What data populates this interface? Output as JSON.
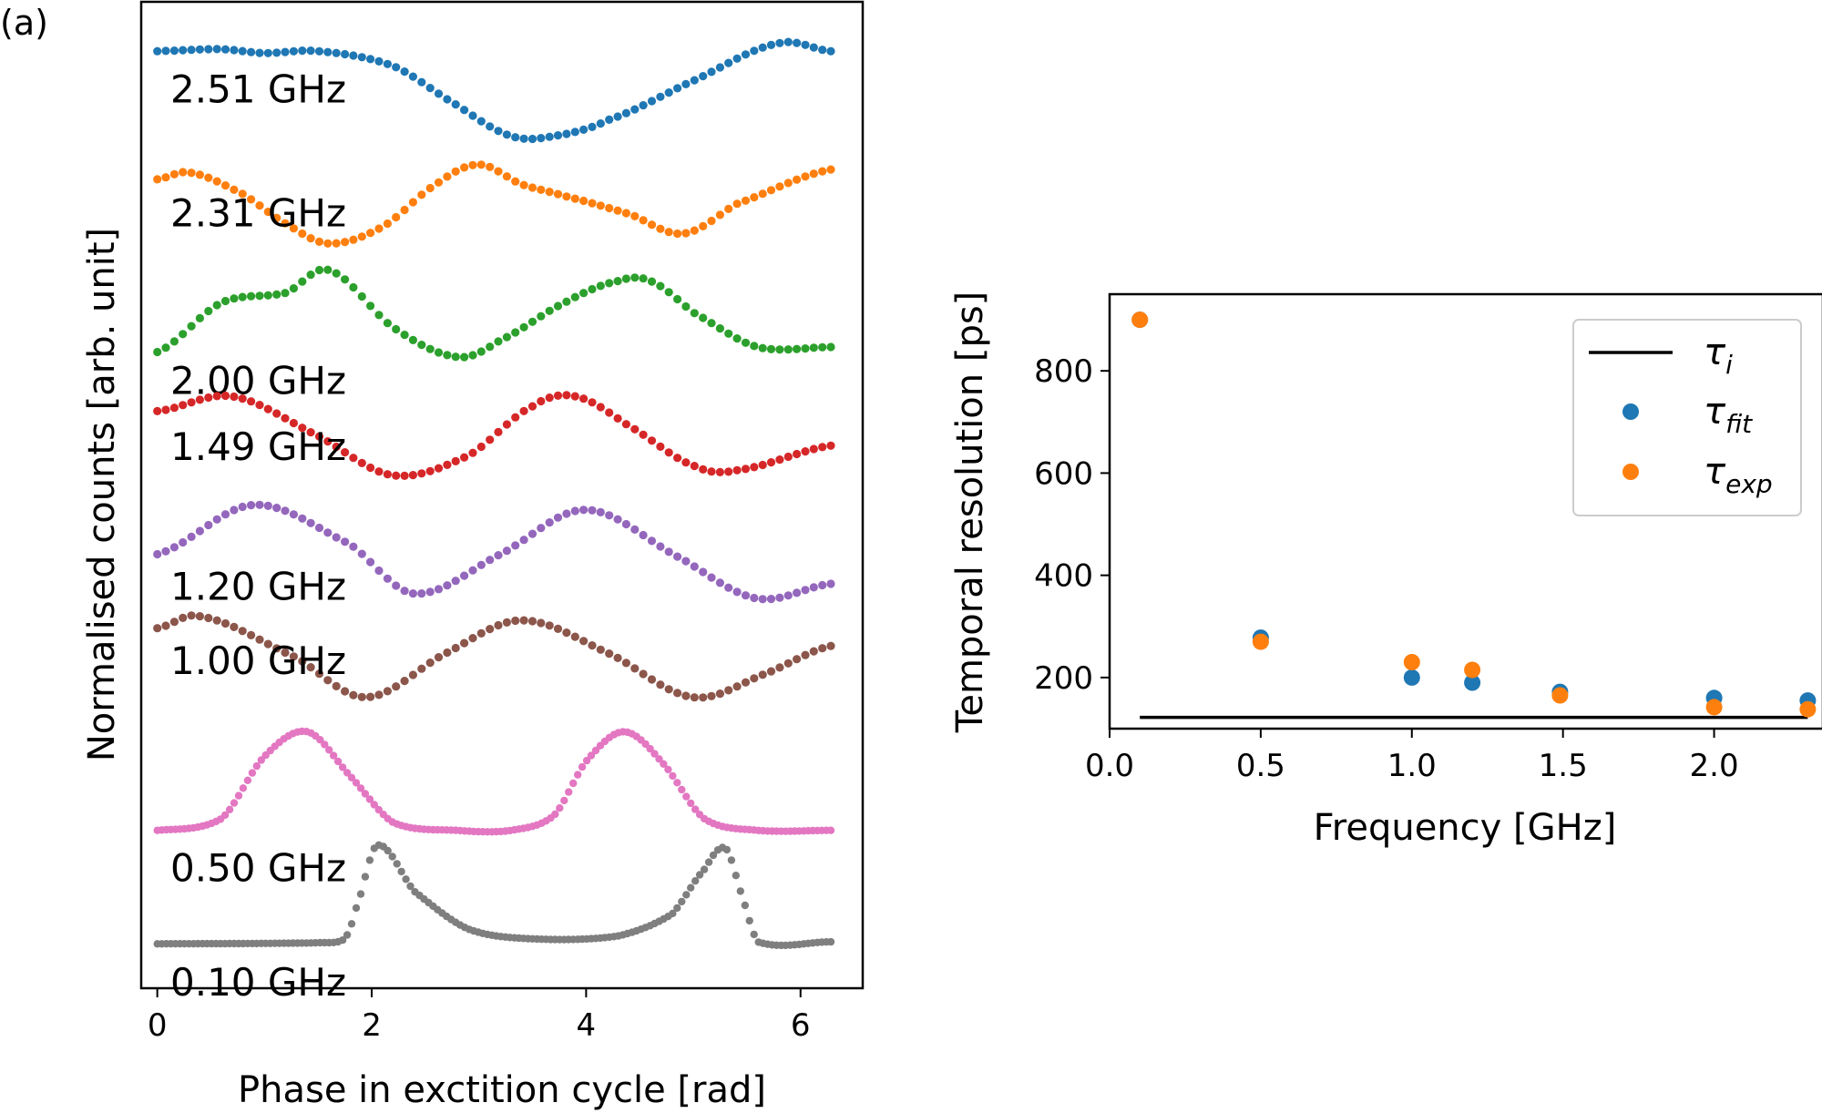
{
  "panel_label": "(a)",
  "chart_data": [
    {
      "type": "scatter",
      "title": "",
      "xlabel": "Phase in exctition cycle [rad]",
      "ylabel": "Normalised counts [arb. unit]",
      "xlim": [
        -0.15,
        6.58
      ],
      "xticks": [
        0,
        2,
        4,
        6
      ],
      "xtick_labels": [
        "0",
        "2",
        "4",
        "6"
      ],
      "x_range": [
        0,
        6.283
      ],
      "grid": false,
      "note": "Curves are vertically offset; y values are in offset plot units (0 = bottom frame, 10 = top frame). Each series is a smooth periodic curve sampled at evenly spaced phases, defined by phase knots.",
      "ylim": [
        0,
        10
      ],
      "series": [
        {
          "name": "2.51 GHz",
          "label": "2.51 GHz",
          "color": "#1f77b4",
          "samples": 80,
          "marker_r": 4.6,
          "knots_x": [
            0,
            0.6,
            1.0,
            1.5,
            2.2,
            2.8,
            3.3,
            3.7,
            4.2,
            5.0,
            5.8,
            6.283
          ],
          "knots_y": [
            9.5,
            9.52,
            9.48,
            9.5,
            9.35,
            8.95,
            8.64,
            8.64,
            8.8,
            9.2,
            9.58,
            9.5
          ]
        },
        {
          "name": "2.31 GHz",
          "label": "2.31 GHz",
          "color": "#ff7f0e",
          "samples": 80,
          "marker_r": 4.6,
          "knots_x": [
            0,
            0.3,
            0.8,
            1.2,
            1.6,
            2.1,
            2.6,
            3.0,
            3.4,
            3.8,
            4.4,
            4.9,
            5.4,
            6.283
          ],
          "knots_y": [
            8.2,
            8.27,
            8.05,
            7.75,
            7.55,
            7.72,
            8.15,
            8.35,
            8.15,
            8.03,
            7.85,
            7.65,
            7.95,
            8.3
          ]
        },
        {
          "name": "2.00 GHz",
          "label": "2.00 GHz",
          "color": "#2ca02c",
          "samples": 80,
          "marker_r": 4.6,
          "knots_x": [
            0,
            0.6,
            1.2,
            1.6,
            2.2,
            2.8,
            3.2,
            3.8,
            4.3,
            4.6,
            5.0,
            5.6,
            6.283
          ],
          "knots_y": [
            6.45,
            6.95,
            7.05,
            7.28,
            6.7,
            6.4,
            6.57,
            6.95,
            7.17,
            7.17,
            6.85,
            6.5,
            6.5
          ]
        },
        {
          "name": "1.49 GHz",
          "label": "1.49 GHz",
          "color": "#d62728",
          "samples": 80,
          "marker_r": 4.6,
          "knots_x": [
            0,
            0.7,
            1.5,
            2.2,
            2.9,
            3.5,
            3.9,
            4.4,
            5.0,
            5.4,
            6.283
          ],
          "knots_y": [
            5.85,
            6.0,
            5.6,
            5.2,
            5.4,
            5.9,
            6.0,
            5.7,
            5.3,
            5.25,
            5.5
          ]
        },
        {
          "name": "1.20 GHz",
          "label": "1.20 GHz",
          "color": "#9467bd",
          "samples": 80,
          "marker_r": 4.6,
          "knots_x": [
            0,
            0.9,
            1.8,
            2.4,
            3.2,
            4.0,
            4.9,
            5.6,
            6.283
          ],
          "knots_y": [
            4.4,
            4.9,
            4.5,
            4.0,
            4.4,
            4.85,
            4.35,
            3.95,
            4.1
          ]
        },
        {
          "name": "1.00 GHz",
          "label": "1.00 GHz",
          "color": "#8c564b",
          "samples": 80,
          "marker_r": 4.6,
          "knots_x": [
            0,
            0.4,
            1.3,
            1.95,
            2.7,
            3.4,
            4.2,
            5.0,
            5.7,
            6.283
          ],
          "knots_y": [
            3.65,
            3.77,
            3.35,
            2.95,
            3.4,
            3.73,
            3.4,
            2.95,
            3.2,
            3.47
          ]
        },
        {
          "name": "0.50 GHz",
          "label": "0.50 GHz",
          "color": "#e377c2",
          "samples": 150,
          "marker_r": 4.2,
          "knots_x": [
            0,
            0.6,
            1.0,
            1.4,
            1.8,
            2.2,
            2.8,
            3.3,
            3.7,
            4.0,
            4.35,
            4.7,
            5.1,
            5.6,
            6.283
          ],
          "knots_y": [
            1.6,
            1.72,
            2.35,
            2.6,
            2.15,
            1.68,
            1.6,
            1.6,
            1.75,
            2.3,
            2.6,
            2.3,
            1.72,
            1.6,
            1.6
          ]
        },
        {
          "name": "0.10 GHz",
          "label": "0.10 GHz",
          "color": "#7f7f7f",
          "samples": 150,
          "marker_r": 4.2,
          "knots_x": [
            0,
            1.5,
            1.75,
            1.85,
            2.05,
            2.4,
            2.9,
            3.5,
            4.3,
            4.8,
            5.1,
            5.3,
            5.45,
            5.6,
            6.283
          ],
          "knots_y": [
            0.45,
            0.46,
            0.5,
            0.8,
            1.45,
            0.98,
            0.6,
            0.5,
            0.53,
            0.75,
            1.2,
            1.42,
            0.95,
            0.47,
            0.47
          ]
        }
      ]
    },
    {
      "type": "scatter",
      "title": "",
      "xlabel": "Frequency [GHz]",
      "ylabel": "Temporal resolution [ps]",
      "xlim": [
        0.0,
        2.36
      ],
      "ylim": [
        100,
        950
      ],
      "xticks": [
        0.0,
        0.5,
        1.0,
        1.5,
        2.0
      ],
      "xtick_labels": [
        "0.0",
        "0.5",
        "1.0",
        "1.5",
        "2.0"
      ],
      "yticks": [
        200,
        400,
        600,
        800
      ],
      "ytick_labels": [
        "200",
        "400",
        "600",
        "800"
      ],
      "grid": false,
      "legend_position": "top-right",
      "line": {
        "name": "τ_i",
        "legend_main": "τ",
        "legend_sub": "i",
        "color": "#000000",
        "y": 122,
        "x_from": 0.1,
        "x_to": 2.31
      },
      "series": [
        {
          "name": "τ_fit",
          "legend_main": "τ",
          "legend_sub": "fit",
          "color": "#1f77b4",
          "x": [
            0.1,
            0.5,
            1.0,
            1.2,
            1.49,
            2.0,
            2.31
          ],
          "y": [
            900,
            278,
            200,
            190,
            172,
            160,
            155
          ]
        },
        {
          "name": "τ_exp",
          "legend_main": "τ",
          "legend_sub": "exp",
          "color": "#ff7f0e",
          "x": [
            0.1,
            0.5,
            1.0,
            1.2,
            1.49,
            2.0,
            2.31
          ],
          "y": [
            900,
            270,
            230,
            215,
            165,
            142,
            138
          ]
        }
      ]
    }
  ]
}
